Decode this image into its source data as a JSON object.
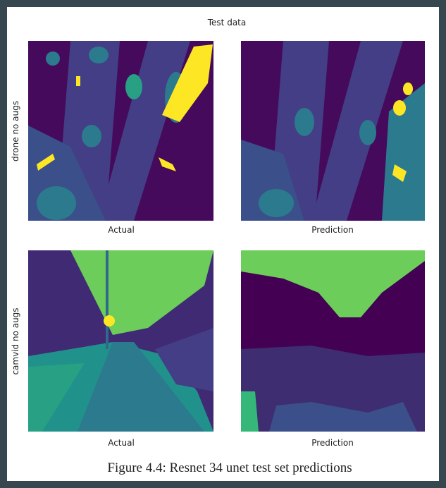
{
  "figure": {
    "title": "Test data",
    "rows": [
      {
        "label": "drone no augs",
        "panels": [
          {
            "caption": "Actual"
          },
          {
            "caption": "Prediction"
          }
        ]
      },
      {
        "label": "camvid no augs",
        "panels": [
          {
            "caption": "Actual"
          },
          {
            "caption": "Prediction"
          }
        ]
      }
    ],
    "caption": "Figure 4.4: Resnet 34 unet test set predictions"
  }
}
